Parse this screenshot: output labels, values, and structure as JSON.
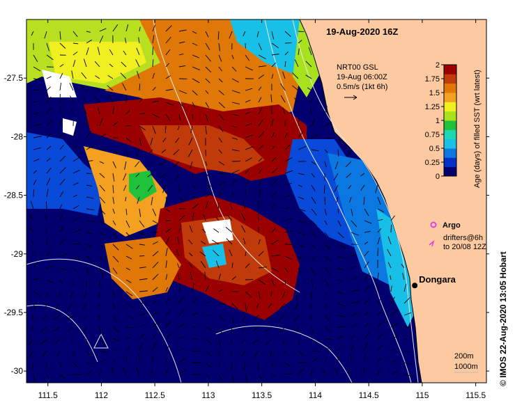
{
  "map": {
    "title": "19-Aug-2020 16Z",
    "x_ticks": [
      "111.5",
      "112",
      "112.5",
      "113",
      "113.5",
      "114",
      "114.5",
      "115",
      "115.5"
    ],
    "y_ticks": [
      "-27.5",
      "-28",
      "-28.5",
      "-29",
      "-29.5",
      "-30"
    ],
    "x_range": [
      111.3,
      115.6
    ],
    "y_range": [
      -30.1,
      -27.0
    ],
    "land_color": "#fdc9a0",
    "city": {
      "name": "Dongara",
      "lon": 114.93,
      "lat": -29.27
    }
  },
  "vector_legend": {
    "line1": "NRT00 GSL",
    "line2": "19-Aug 06:00Z",
    "line3": "0.5m/s (1kt 6h)"
  },
  "colorbar": {
    "label": "Age (days) of filled SST (wrt latest)",
    "ticks": [
      "2",
      "1.75",
      "1.5",
      "1.25",
      "1",
      "0.75",
      "0.5",
      "0.25",
      "0"
    ],
    "range": [
      0,
      2
    ],
    "colors": [
      "#02006e",
      "#0030c8",
      "#0a78e0",
      "#18c0e8",
      "#1fd6b4",
      "#1ec23a",
      "#a8e21e",
      "#f0f020",
      "#f4a020",
      "#e07808",
      "#c03a0a",
      "#9a0000"
    ]
  },
  "legend": {
    "argo_label": "Argo",
    "drifters_line1": "drifters@6h",
    "drifters_line2": "to 20/08 12Z",
    "argo_color": "#e040e0"
  },
  "contours": {
    "label_200": "200m",
    "label_1000": "1000m"
  },
  "credit": "©  IMOS 22-Aug-2020 13:05 Hobart"
}
